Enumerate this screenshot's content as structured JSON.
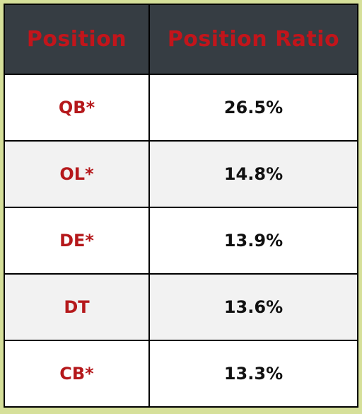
{
  "chart_data": {
    "type": "table",
    "columns": [
      "Position",
      "Position Ratio"
    ],
    "rows": [
      {
        "position": "QB*",
        "ratio": "26.5%",
        "value": 26.5
      },
      {
        "position": "OL*",
        "ratio": "14.8%",
        "value": 14.8
      },
      {
        "position": "DE*",
        "ratio": "13.9%",
        "value": 13.9
      },
      {
        "position": "DT",
        "ratio": "13.6%",
        "value": 13.6
      },
      {
        "position": "CB*",
        "ratio": "13.3%",
        "value": 13.3
      }
    ]
  },
  "colors": {
    "background": "#d6e09a",
    "header_background": "#363d43",
    "header_text": "#c2151b",
    "position_text": "#b5181b",
    "ratio_text": "#111111",
    "row_alt": "#f2f2f2"
  }
}
